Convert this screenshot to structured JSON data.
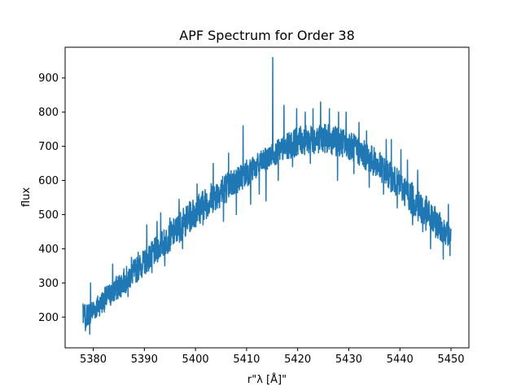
{
  "chart_data": {
    "type": "line",
    "title": "APF Spectrum for Order 38",
    "xlabel": "r\"λ [Å]\"",
    "ylabel": "flux",
    "xlim": [
      5374.5,
      5453.5
    ],
    "ylim": [
      110,
      990
    ],
    "xticks": [
      5380,
      5390,
      5400,
      5410,
      5420,
      5430,
      5440,
      5450
    ],
    "yticks": [
      200,
      300,
      400,
      500,
      600,
      700,
      800,
      900
    ],
    "grid": false,
    "line_color": "#1f77b4",
    "series": [
      {
        "x_range": [
          5378,
          5450
        ],
        "envelope": {
          "x": [
            5378,
            5380,
            5385,
            5390,
            5395,
            5400,
            5405,
            5410,
            5415,
            5420,
            5425,
            5430,
            5435,
            5440,
            5445,
            5450
          ],
          "upper": [
            235,
            255,
            330,
            400,
            480,
            560,
            620,
            660,
            710,
            760,
            770,
            750,
            700,
            630,
            560,
            470
          ],
          "lower": [
            160,
            185,
            250,
            320,
            390,
            460,
            520,
            580,
            640,
            670,
            680,
            660,
            610,
            540,
            450,
            400
          ]
        },
        "spikes": [
          {
            "x": 5378.0,
            "y": 240
          },
          {
            "x": 5378.3,
            "y": 230
          },
          {
            "x": 5379.5,
            "y": 300
          },
          {
            "x": 5383.8,
            "y": 355
          },
          {
            "x": 5387.5,
            "y": 375
          },
          {
            "x": 5388.8,
            "y": 390
          },
          {
            "x": 5390.5,
            "y": 470
          },
          {
            "x": 5392.5,
            "y": 480
          },
          {
            "x": 5393.2,
            "y": 505
          },
          {
            "x": 5395.0,
            "y": 490
          },
          {
            "x": 5396.8,
            "y": 545
          },
          {
            "x": 5400.3,
            "y": 590
          },
          {
            "x": 5403.5,
            "y": 650
          },
          {
            "x": 5406.5,
            "y": 680
          },
          {
            "x": 5409.3,
            "y": 760
          },
          {
            "x": 5410.0,
            "y": 660
          },
          {
            "x": 5412.5,
            "y": 715
          },
          {
            "x": 5415.1,
            "y": 960
          },
          {
            "x": 5417.3,
            "y": 820
          },
          {
            "x": 5419.8,
            "y": 810
          },
          {
            "x": 5421.5,
            "y": 800
          },
          {
            "x": 5423.0,
            "y": 810
          },
          {
            "x": 5424.5,
            "y": 830
          },
          {
            "x": 5426.2,
            "y": 810
          },
          {
            "x": 5428.0,
            "y": 800
          },
          {
            "x": 5429.5,
            "y": 800
          },
          {
            "x": 5432.0,
            "y": 770
          },
          {
            "x": 5433.5,
            "y": 745
          },
          {
            "x": 5437.3,
            "y": 720
          },
          {
            "x": 5438.3,
            "y": 720
          },
          {
            "x": 5440.2,
            "y": 690
          },
          {
            "x": 5441.5,
            "y": 660
          },
          {
            "x": 5443.5,
            "y": 630
          },
          {
            "x": 5449.5,
            "y": 530
          }
        ],
        "dips": [
          {
            "x": 5378.5,
            "y": 160
          },
          {
            "x": 5379.3,
            "y": 150
          },
          {
            "x": 5386.8,
            "y": 260
          },
          {
            "x": 5391.5,
            "y": 330
          },
          {
            "x": 5394.0,
            "y": 350
          },
          {
            "x": 5397.5,
            "y": 400
          },
          {
            "x": 5401.5,
            "y": 470
          },
          {
            "x": 5405.5,
            "y": 480
          },
          {
            "x": 5408.0,
            "y": 500
          },
          {
            "x": 5410.8,
            "y": 530
          },
          {
            "x": 5412.5,
            "y": 560
          },
          {
            "x": 5413.8,
            "y": 540
          },
          {
            "x": 5416.2,
            "y": 600
          },
          {
            "x": 5419.0,
            "y": 640
          },
          {
            "x": 5422.5,
            "y": 650
          },
          {
            "x": 5427.8,
            "y": 600
          },
          {
            "x": 5431.0,
            "y": 620
          },
          {
            "x": 5434.0,
            "y": 580
          },
          {
            "x": 5436.8,
            "y": 560
          },
          {
            "x": 5439.5,
            "y": 520
          },
          {
            "x": 5442.5,
            "y": 470
          },
          {
            "x": 5444.5,
            "y": 450
          },
          {
            "x": 5446.0,
            "y": 400
          },
          {
            "x": 5448.5,
            "y": 370
          },
          {
            "x": 5449.8,
            "y": 380
          }
        ]
      }
    ]
  }
}
